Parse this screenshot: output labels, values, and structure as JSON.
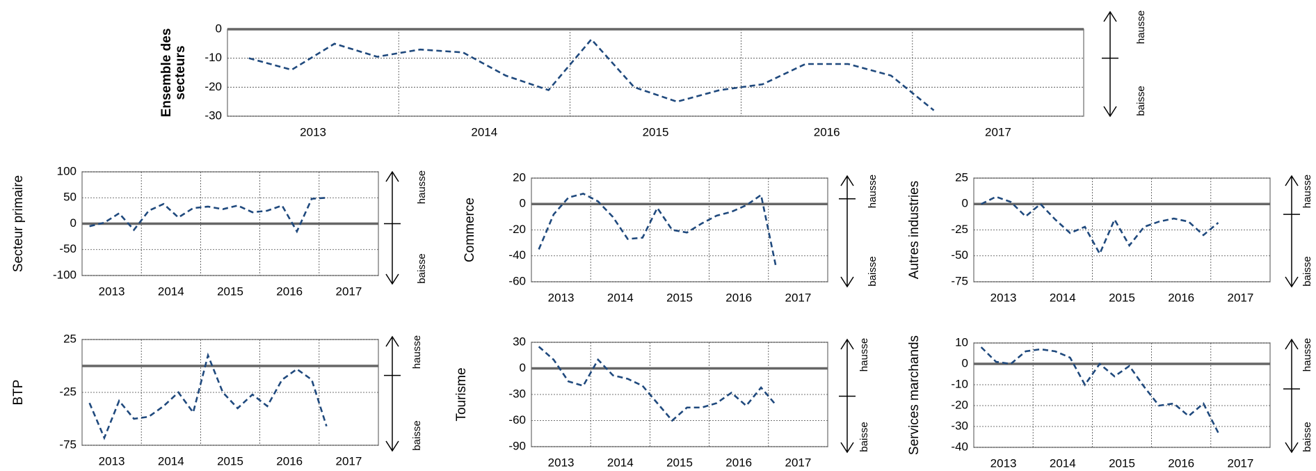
{
  "chart_data": [
    {
      "type": "line",
      "y_label": [
        "Ensemble des",
        "secteurs"
      ],
      "years": [
        "2013",
        "2014",
        "2015",
        "2016",
        "2017"
      ],
      "color": "#1f497d",
      "values": [
        -10,
        -14,
        -5,
        -9.5,
        -7,
        -8,
        -16,
        -21,
        -3.5,
        -20,
        -25,
        -21,
        -19,
        -12,
        -12,
        -16,
        -28
      ],
      "ylim": [
        -30,
        0
      ],
      "yticks": [
        -30,
        -20,
        -10,
        0
      ],
      "grid": true,
      "gauge": {
        "up": "hausse",
        "down": "baisse",
        "level": -10
      }
    },
    {
      "type": "line",
      "y_label": [
        "Secteur primaire"
      ],
      "years": [
        "2013",
        "2014",
        "2015",
        "2016",
        "2017"
      ],
      "color": "#1f497d",
      "values": [
        -5,
        2,
        20,
        -12,
        25,
        38,
        12,
        30,
        33,
        28,
        35,
        22,
        25,
        35,
        -15,
        48,
        50
      ],
      "ylim": [
        -100,
        100
      ],
      "yticks": [
        -100,
        -50,
        0,
        50,
        100
      ],
      "grid": true,
      "gauge": {
        "up": "hausse",
        "down": "baisse",
        "level": 0
      }
    },
    {
      "type": "line",
      "y_label": [
        "Commerce"
      ],
      "years": [
        "2013",
        "2014",
        "2015",
        "2016",
        "2017"
      ],
      "color": "#1f497d",
      "values": [
        -35,
        -8,
        5,
        8,
        2,
        -10,
        -27,
        -26,
        -3,
        -20,
        -22,
        -15,
        -9,
        -6,
        -1,
        7,
        -48
      ],
      "ylim": [
        -60,
        20
      ],
      "yticks": [
        -60,
        -40,
        -20,
        0,
        20
      ],
      "grid": true,
      "gauge": {
        "up": "hausse",
        "down": "baisse",
        "level": 4
      }
    },
    {
      "type": "line",
      "y_label": [
        "Autres industries"
      ],
      "years": [
        "2013",
        "2014",
        "2015",
        "2016",
        "2017"
      ],
      "color": "#1f497d",
      "values": [
        0,
        7,
        2,
        -12,
        0,
        -15,
        -28,
        -22,
        -48,
        -15,
        -40,
        -22,
        -17,
        -14,
        -17,
        -30,
        -18
      ],
      "ylim": [
        -75,
        25
      ],
      "yticks": [
        -75,
        -50,
        -25,
        0,
        25
      ],
      "grid": true,
      "gauge": {
        "up": "hausse",
        "down": "baisse",
        "level": -10
      }
    },
    {
      "type": "line",
      "y_label": [
        "BTP"
      ],
      "years": [
        "2013",
        "2014",
        "2015",
        "2016",
        "2017"
      ],
      "color": "#1f497d",
      "values": [
        -35,
        -68,
        -33,
        -50,
        -48,
        -38,
        -25,
        -44,
        10,
        -25,
        -40,
        -27,
        -38,
        -13,
        -3,
        -13,
        -57
      ],
      "ylim": [
        -75,
        25
      ],
      "yticks": [
        -75,
        -25,
        25
      ],
      "grid": true,
      "gauge": {
        "up": "hausse",
        "down": "baisse",
        "level": -9
      }
    },
    {
      "type": "line",
      "y_label": [
        "Tourisme"
      ],
      "years": [
        "2013",
        "2014",
        "2015",
        "2016",
        "2017"
      ],
      "color": "#1f497d",
      "values": [
        25,
        10,
        -15,
        -20,
        10,
        -8,
        -12,
        -20,
        -40,
        -60,
        -45,
        -45,
        -40,
        -28,
        -43,
        -22,
        -42
      ],
      "ylim": [
        -90,
        30
      ],
      "yticks": [
        -90,
        -60,
        -30,
        0,
        30
      ],
      "grid": true,
      "gauge": {
        "up": "hausse",
        "down": "baisse",
        "level": -32
      }
    },
    {
      "type": "line",
      "y_label": [
        "Services marchands"
      ],
      "years": [
        "2013",
        "2014",
        "2015",
        "2016",
        "2017"
      ],
      "color": "#1f497d",
      "values": [
        8,
        1,
        0,
        6,
        7,
        6,
        3,
        -10,
        0,
        -6,
        -1,
        -11,
        -20,
        -19,
        -25,
        -19,
        -33
      ],
      "ylim": [
        -40,
        10
      ],
      "yticks": [
        -40,
        -30,
        -20,
        -10,
        0,
        10
      ],
      "grid": true,
      "gauge": {
        "up": "hausse",
        "down": "baisse",
        "level": -12
      }
    }
  ]
}
